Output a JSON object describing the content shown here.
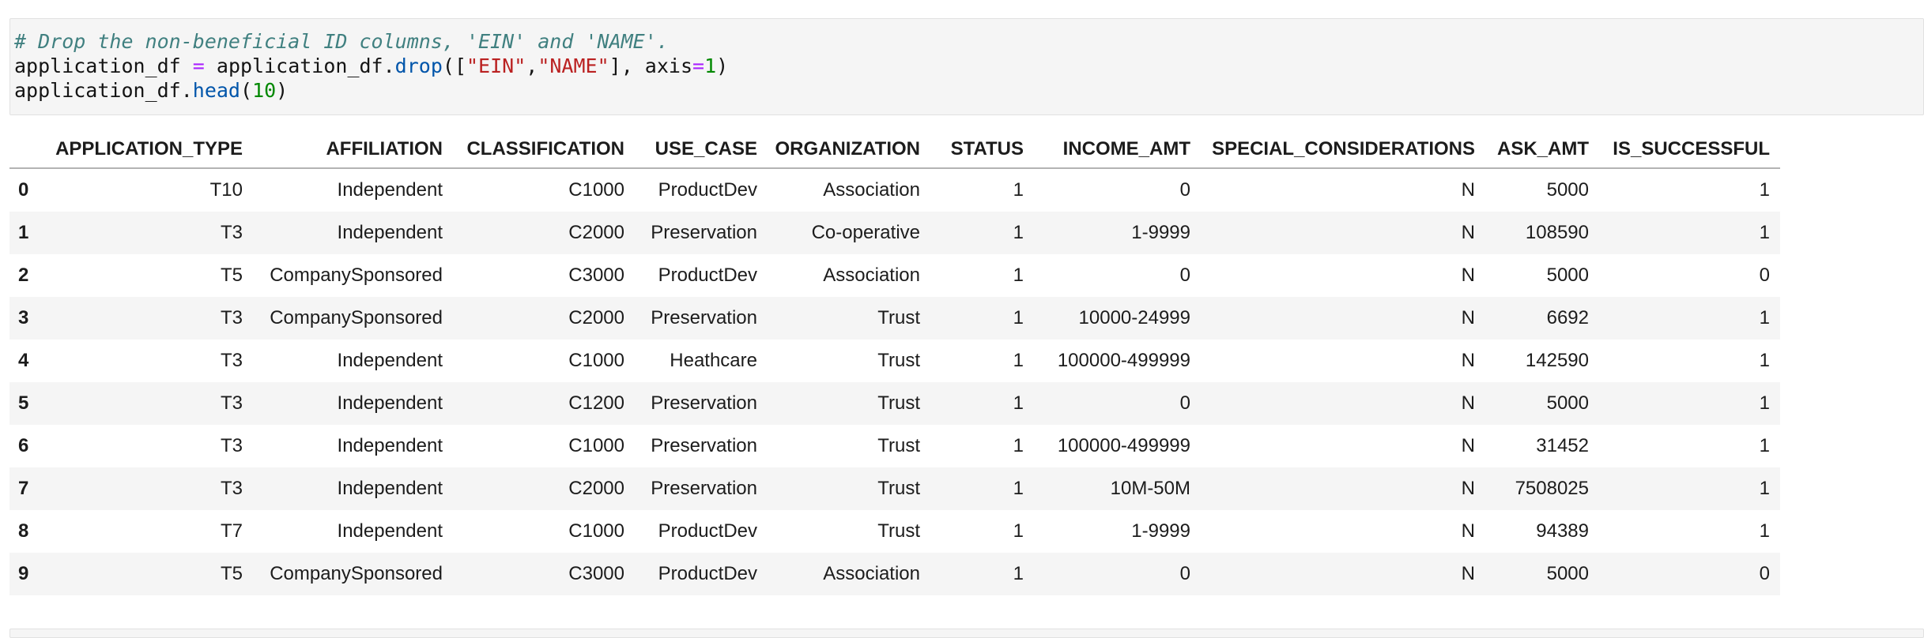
{
  "code_cell": {
    "plain_text": "# Drop the non-beneficial ID columns, 'EIN' and 'NAME'.\napplication_df = application_df.drop([\"EIN\",\"NAME\"], axis=1)\napplication_df.head(10)",
    "lines": [
      {
        "tokens": [
          {
            "t": "# Drop the non-beneficial ID columns, 'EIN' and 'NAME'.",
            "c": "comment"
          }
        ]
      },
      {
        "tokens": [
          {
            "t": "application_df ",
            "c": "plain"
          },
          {
            "t": "=",
            "c": "operator"
          },
          {
            "t": " application_df.",
            "c": "plain"
          },
          {
            "t": "drop",
            "c": "property"
          },
          {
            "t": "([",
            "c": "plain"
          },
          {
            "t": "\"EIN\"",
            "c": "string"
          },
          {
            "t": ",",
            "c": "plain"
          },
          {
            "t": "\"NAME\"",
            "c": "string"
          },
          {
            "t": "], axis",
            "c": "plain"
          },
          {
            "t": "=",
            "c": "operator"
          },
          {
            "t": "1",
            "c": "number"
          },
          {
            "t": ")",
            "c": "plain"
          }
        ]
      },
      {
        "tokens": [
          {
            "t": "application_df.",
            "c": "plain"
          },
          {
            "t": "head",
            "c": "property"
          },
          {
            "t": "(",
            "c": "plain"
          },
          {
            "t": "10",
            "c": "number"
          },
          {
            "t": ")",
            "c": "plain"
          }
        ]
      }
    ]
  },
  "dataframe": {
    "index_header": "",
    "columns": [
      "APPLICATION_TYPE",
      "AFFILIATION",
      "CLASSIFICATION",
      "USE_CASE",
      "ORGANIZATION",
      "STATUS",
      "INCOME_AMT",
      "SPECIAL_CONSIDERATIONS",
      "ASK_AMT",
      "IS_SUCCESSFUL"
    ],
    "rows": [
      {
        "index": "0",
        "cells": [
          "T10",
          "Independent",
          "C1000",
          "ProductDev",
          "Association",
          "1",
          "0",
          "N",
          "5000",
          "1"
        ]
      },
      {
        "index": "1",
        "cells": [
          "T3",
          "Independent",
          "C2000",
          "Preservation",
          "Co-operative",
          "1",
          "1-9999",
          "N",
          "108590",
          "1"
        ]
      },
      {
        "index": "2",
        "cells": [
          "T5",
          "CompanySponsored",
          "C3000",
          "ProductDev",
          "Association",
          "1",
          "0",
          "N",
          "5000",
          "0"
        ]
      },
      {
        "index": "3",
        "cells": [
          "T3",
          "CompanySponsored",
          "C2000",
          "Preservation",
          "Trust",
          "1",
          "10000-24999",
          "N",
          "6692",
          "1"
        ]
      },
      {
        "index": "4",
        "cells": [
          "T3",
          "Independent",
          "C1000",
          "Heathcare",
          "Trust",
          "1",
          "100000-499999",
          "N",
          "142590",
          "1"
        ]
      },
      {
        "index": "5",
        "cells": [
          "T3",
          "Independent",
          "C1200",
          "Preservation",
          "Trust",
          "1",
          "0",
          "N",
          "5000",
          "1"
        ]
      },
      {
        "index": "6",
        "cells": [
          "T3",
          "Independent",
          "C1000",
          "Preservation",
          "Trust",
          "1",
          "100000-499999",
          "N",
          "31452",
          "1"
        ]
      },
      {
        "index": "7",
        "cells": [
          "T3",
          "Independent",
          "C2000",
          "Preservation",
          "Trust",
          "1",
          "10M-50M",
          "N",
          "7508025",
          "1"
        ]
      },
      {
        "index": "8",
        "cells": [
          "T7",
          "Independent",
          "C1000",
          "ProductDev",
          "Trust",
          "1",
          "1-9999",
          "N",
          "94389",
          "1"
        ]
      },
      {
        "index": "9",
        "cells": [
          "T5",
          "CompanySponsored",
          "C3000",
          "ProductDev",
          "Association",
          "1",
          "0",
          "N",
          "5000",
          "0"
        ]
      }
    ]
  },
  "colors": {
    "cell_background": "#f5f5f5",
    "cell_border": "#e1e1e1",
    "row_stripe": "#f5f5f5",
    "header_rule": "#b3b3b3",
    "syntax_comment": "#408080",
    "syntax_operator": "#AA22FF",
    "syntax_property": "#0055AA",
    "syntax_string": "#BA2121",
    "syntax_number": "#008800",
    "text": "#1c1c1c"
  }
}
